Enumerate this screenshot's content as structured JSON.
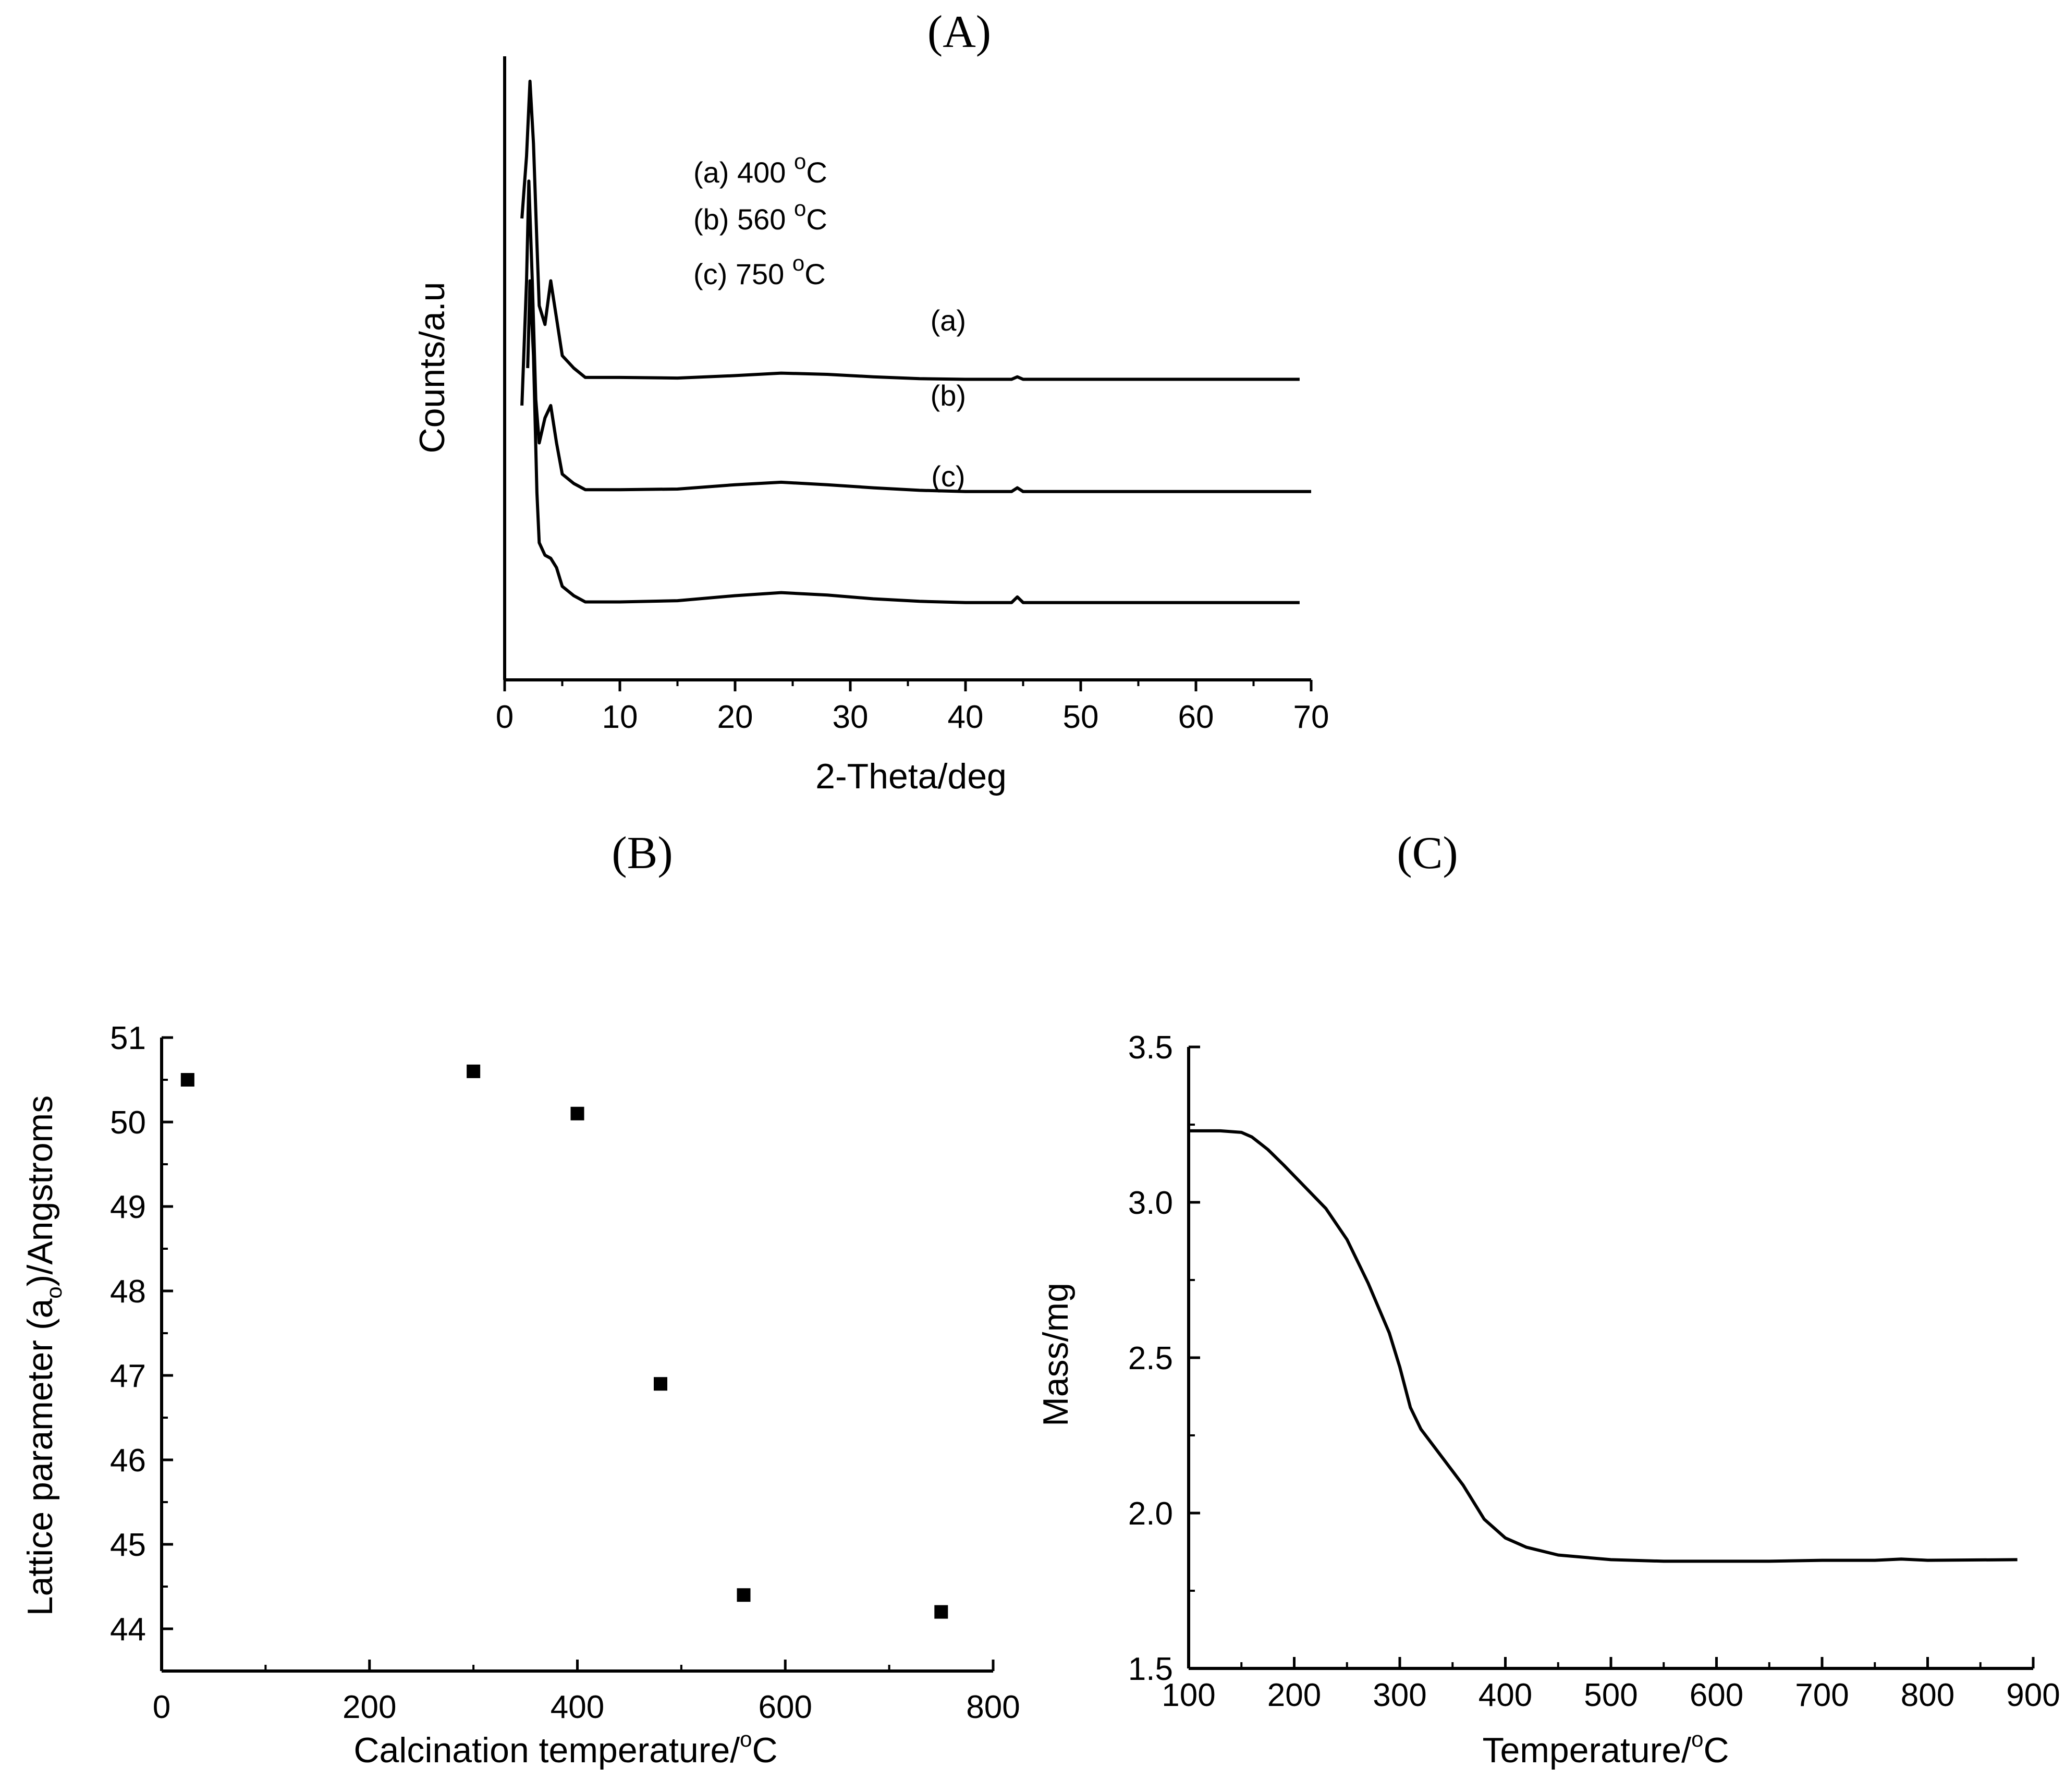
{
  "colors": {
    "ink": "#000000",
    "background": "#ffffff"
  },
  "chart_data": [
    {
      "id": "A",
      "type": "line",
      "panel_label": "(A)",
      "xlabel": "2-Theta/deg",
      "ylabel": "Counts/a.u",
      "xlim": [
        0,
        70
      ],
      "xticks": [
        "0",
        "10",
        "20",
        "30",
        "40",
        "50",
        "60",
        "70"
      ],
      "yticks": [],
      "legend_lines": [
        {
          "text": "(a) 400 ",
          "sup": "o",
          "unit": "C"
        },
        {
          "text": "(b) 560 ",
          "sup": "o",
          "unit": "C"
        },
        {
          "text": "(c) 750 ",
          "sup": "o",
          "unit": "C"
        }
      ],
      "series": [
        {
          "name": "(a)",
          "label": "(a)",
          "label_at": [
            38.5,
            56
          ],
          "x": [
            1.5,
            1.9,
            2.2,
            2.5,
            2.8,
            3.0,
            3.5,
            4.0,
            4.5,
            5.0,
            6.0,
            7.0,
            10,
            15,
            20,
            24,
            28,
            32,
            36,
            40,
            44,
            44.5,
            45,
            50,
            60,
            69
          ],
          "y": [
            74,
            84,
            96,
            86,
            70,
            60,
            57,
            64,
            58,
            52,
            50,
            48.5,
            48.5,
            48.4,
            48.8,
            49.2,
            49,
            48.6,
            48.3,
            48.2,
            48.2,
            48.6,
            48.2,
            48.2,
            48.2,
            48.2
          ]
        },
        {
          "name": "(b)",
          "label": "(b)",
          "label_at": [
            38.5,
            44
          ],
          "x": [
            1.5,
            1.9,
            2.1,
            2.4,
            2.7,
            3.0,
            3.5,
            4.0,
            4.5,
            5.0,
            6.0,
            7.0,
            10,
            15,
            20,
            24,
            28,
            32,
            36,
            40,
            44,
            44.5,
            45,
            50,
            60,
            70
          ],
          "y": [
            44,
            64,
            80,
            64,
            45,
            38,
            42,
            44,
            38,
            33,
            31.5,
            30.5,
            30.5,
            30.6,
            31.3,
            31.7,
            31.3,
            30.8,
            30.4,
            30.2,
            30.2,
            30.8,
            30.2,
            30.2,
            30.2,
            30.2
          ]
        },
        {
          "name": "(c)",
          "label": "(c)",
          "label_at": [
            38.5,
            31
          ],
          "x": [
            2.0,
            2.2,
            2.5,
            2.8,
            3.0,
            3.5,
            4.0,
            4.5,
            5.0,
            6.0,
            7.0,
            10,
            15,
            20,
            24,
            28,
            32,
            36,
            40,
            44,
            44.5,
            45,
            50,
            60,
            69
          ],
          "y": [
            50,
            64,
            52,
            30,
            22,
            20,
            19.5,
            18,
            15,
            13.5,
            12.5,
            12.5,
            12.7,
            13.5,
            14,
            13.6,
            13,
            12.6,
            12.4,
            12.4,
            13.3,
            12.4,
            12.4,
            12.4,
            12.4
          ]
        }
      ]
    },
    {
      "id": "B",
      "type": "scatter",
      "panel_label": "(B)",
      "xlabel": "Calcination temperature/",
      "xlabel_sup": "o",
      "xlabel_unit": "C",
      "ylabel": "Lattice parameter (a",
      "ylabel_sub": "o",
      "ylabel_tail": ")/Angstroms",
      "xlim": [
        0,
        800
      ],
      "ylim": [
        43.5,
        51
      ],
      "xticks": [
        "0",
        "200",
        "400",
        "600",
        "800"
      ],
      "yticks": [
        "44",
        "45",
        "46",
        "47",
        "48",
        "49",
        "50",
        "51"
      ],
      "x": [
        25,
        300,
        400,
        480,
        560,
        750
      ],
      "y": [
        50.5,
        50.6,
        50.1,
        46.9,
        44.4,
        44.2
      ]
    },
    {
      "id": "C",
      "type": "line",
      "panel_label": "(C)",
      "xlabel": "Temperature/",
      "xlabel_sup": "o",
      "xlabel_unit": "C",
      "ylabel": "Mass/mg",
      "xlim": [
        100,
        900
      ],
      "ylim": [
        1.5,
        3.5
      ],
      "xticks": [
        "100",
        "200",
        "300",
        "400",
        "500",
        "600",
        "700",
        "800",
        "900"
      ],
      "yticks": [
        "1.5",
        "2.0",
        "2.5",
        "3.0",
        "3.5"
      ],
      "series": [
        {
          "name": "mass",
          "x": [
            100,
            130,
            150,
            160,
            175,
            190,
            210,
            230,
            250,
            270,
            290,
            300,
            310,
            320,
            340,
            360,
            380,
            400,
            420,
            450,
            500,
            550,
            600,
            650,
            700,
            750,
            775,
            800,
            885
          ],
          "y": [
            3.23,
            3.23,
            3.225,
            3.21,
            3.17,
            3.12,
            3.05,
            2.98,
            2.88,
            2.74,
            2.58,
            2.47,
            2.34,
            2.27,
            2.18,
            2.09,
            1.98,
            1.92,
            1.89,
            1.865,
            1.85,
            1.845,
            1.845,
            1.845,
            1.848,
            1.848,
            1.852,
            1.848,
            1.85
          ]
        }
      ]
    }
  ]
}
